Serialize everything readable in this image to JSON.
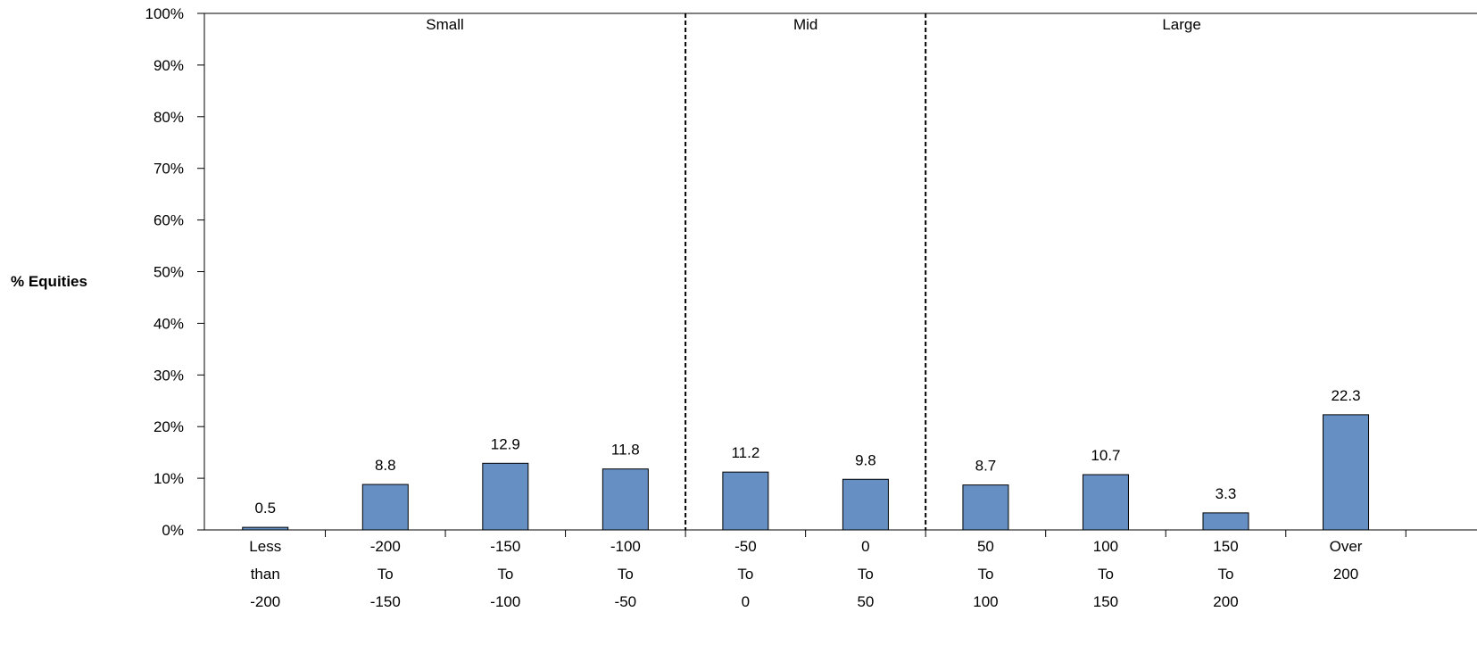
{
  "chart_data": {
    "type": "bar",
    "ylabel": "% Equities",
    "ylim": [
      0,
      100
    ],
    "yticks": [
      "0%",
      "10%",
      "20%",
      "30%",
      "40%",
      "50%",
      "60%",
      "70%",
      "80%",
      "90%",
      "100%"
    ],
    "categories": [
      [
        "Less",
        "than",
        "-200"
      ],
      [
        "-200",
        "To",
        "-150"
      ],
      [
        "-150",
        "To",
        "-100"
      ],
      [
        "-100",
        "To",
        "-50"
      ],
      [
        "-50",
        "To",
        "0"
      ],
      [
        "0",
        "To",
        "50"
      ],
      [
        "50",
        "To",
        "100"
      ],
      [
        "100",
        "To",
        "150"
      ],
      [
        "150",
        "To",
        "200"
      ],
      [
        "Over",
        "200"
      ]
    ],
    "values": [
      0.5,
      8.8,
      12.9,
      11.8,
      11.2,
      9.8,
      8.7,
      10.7,
      3.3,
      22.3
    ],
    "value_labels": [
      "0.5",
      "8.8",
      "12.9",
      "11.8",
      "11.2",
      "9.8",
      "8.7",
      "10.7",
      "3.3",
      "22.3"
    ],
    "groups": [
      {
        "label": "Small",
        "from": 0,
        "to": 3
      },
      {
        "label": "Mid",
        "from": 4,
        "to": 5
      },
      {
        "label": "Large",
        "from": 6,
        "to": 9
      }
    ],
    "bar_color": "#6690c3",
    "grid": false
  }
}
